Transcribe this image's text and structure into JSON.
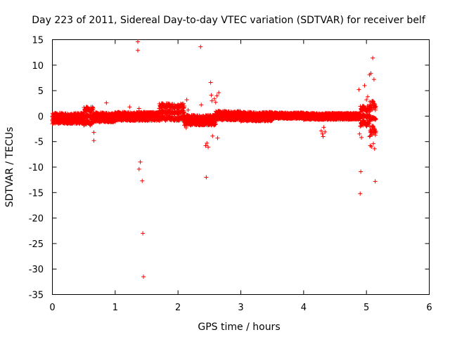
{
  "chart_data": {
    "type": "scatter",
    "title": "Day 223 of 2011, Sidereal Day-to-day VTEC variation (SDTVAR) for receiver belf",
    "xlabel": "GPS time / hours",
    "ylabel": "SDTVAR / TECUs",
    "xlim": [
      0,
      6
    ],
    "ylim": [
      -35,
      15
    ],
    "xticks": [
      0,
      1,
      2,
      3,
      4,
      5,
      6
    ],
    "yticks": [
      -35,
      -30,
      -25,
      -20,
      -15,
      -10,
      -5,
      0,
      5,
      10,
      15
    ],
    "grid": false,
    "legend": "none",
    "marker": "+",
    "color": "#ff0000",
    "series": [
      {
        "name": "SDTVAR",
        "dense_bands": [
          {
            "x": [
              0.0,
              0.5
            ],
            "y": [
              -1.5,
              0.6
            ]
          },
          {
            "x": [
              0.5,
              0.65
            ],
            "y": [
              -1.8,
              1.8
            ]
          },
          {
            "x": [
              0.65,
              1.0
            ],
            "y": [
              -1.2,
              0.7
            ]
          },
          {
            "x": [
              1.0,
              1.7
            ],
            "y": [
              -0.9,
              0.8
            ]
          },
          {
            "x": [
              1.7,
              2.1
            ],
            "y": [
              -0.9,
              2.5
            ]
          },
          {
            "x": [
              2.1,
              2.6
            ],
            "y": [
              -1.8,
              0.2
            ]
          },
          {
            "x": [
              2.6,
              3.0
            ],
            "y": [
              -0.8,
              1.0
            ]
          },
          {
            "x": [
              3.0,
              3.5
            ],
            "y": [
              -1.0,
              0.8
            ]
          },
          {
            "x": [
              3.5,
              4.0
            ],
            "y": [
              -0.5,
              0.7
            ]
          },
          {
            "x": [
              4.0,
              4.9
            ],
            "y": [
              -0.7,
              0.6
            ]
          },
          {
            "x": [
              4.9,
              5.05
            ],
            "y": [
              -2.0,
              2.0
            ]
          },
          {
            "x": [
              5.05,
              5.15
            ],
            "y": [
              -4.0,
              3.0
            ]
          }
        ],
        "points": [
          [
            0.66,
            -3.2
          ],
          [
            0.66,
            -4.8
          ],
          [
            0.86,
            2.6
          ],
          [
            1.23,
            1.8
          ],
          [
            1.36,
            14.6
          ],
          [
            1.36,
            12.9
          ],
          [
            1.38,
            1.5
          ],
          [
            1.4,
            -9.0
          ],
          [
            1.38,
            -10.4
          ],
          [
            1.43,
            -12.7
          ],
          [
            1.44,
            -23.0
          ],
          [
            1.45,
            -31.5
          ],
          [
            2.14,
            3.2
          ],
          [
            2.16,
            1.2
          ],
          [
            2.13,
            -2.3
          ],
          [
            2.36,
            13.6
          ],
          [
            2.37,
            2.2
          ],
          [
            2.44,
            -5.8
          ],
          [
            2.46,
            -5.3
          ],
          [
            2.48,
            -6.1
          ],
          [
            2.45,
            -12.0
          ],
          [
            2.52,
            6.6
          ],
          [
            2.53,
            4.1
          ],
          [
            2.54,
            3.0
          ],
          [
            2.55,
            -3.9
          ],
          [
            2.58,
            3.4
          ],
          [
            2.6,
            2.7
          ],
          [
            2.62,
            4.0
          ],
          [
            2.65,
            4.6
          ],
          [
            2.63,
            -4.3
          ],
          [
            4.28,
            -2.9
          ],
          [
            4.3,
            -3.5
          ],
          [
            4.32,
            -2.2
          ],
          [
            4.31,
            -4.0
          ],
          [
            4.34,
            -3.1
          ],
          [
            4.88,
            5.2
          ],
          [
            4.9,
            -15.2
          ],
          [
            4.91,
            -10.9
          ],
          [
            4.89,
            -3.5
          ],
          [
            4.92,
            -4.2
          ],
          [
            4.97,
            6.0
          ],
          [
            5.0,
            3.2
          ],
          [
            5.02,
            3.8
          ],
          [
            5.04,
            2.0
          ],
          [
            5.05,
            8.1
          ],
          [
            5.07,
            8.4
          ],
          [
            5.1,
            11.4
          ],
          [
            5.12,
            7.2
          ],
          [
            5.06,
            -5.8
          ],
          [
            5.08,
            -6.0
          ],
          [
            5.11,
            -5.4
          ],
          [
            5.13,
            -6.4
          ],
          [
            5.14,
            -12.8
          ]
        ]
      }
    ]
  }
}
